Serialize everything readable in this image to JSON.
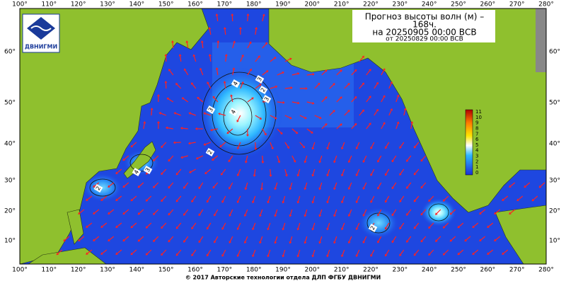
{
  "header": {
    "title": "Прогноз высоты волн (м) –",
    "lead": "168ч.",
    "valid": "на 20250905 00:00 ВСВ",
    "issued": "от 20250829 00:00 ВСВ"
  },
  "logo": {
    "label": "ДВНИГМИ"
  },
  "lon_labels": [
    "100°",
    "110°",
    "120°",
    "130°",
    "140°",
    "150°",
    "160°",
    "170°",
    "180°",
    "190°",
    "200°",
    "210°",
    "220°",
    "230°",
    "240°",
    "250°",
    "260°",
    "270°",
    "280°"
  ],
  "lat_labels": [
    "60°",
    "50°",
    "40°",
    "30°",
    "20°",
    "10°"
  ],
  "colorbar": {
    "labels": [
      "11",
      "10",
      "9",
      "8",
      "7",
      "6",
      "5",
      "4",
      "3",
      "2",
      "1",
      "0"
    ]
  },
  "contours": [
    {
      "label": "4"
    },
    {
      "label": "4"
    },
    {
      "label": "3"
    },
    {
      "label": "2"
    },
    {
      "label": "3"
    },
    {
      "label": "2"
    },
    {
      "label": "3"
    },
    {
      "label": "4"
    },
    {
      "label": "3"
    },
    {
      "label": "2"
    },
    {
      "label": "2"
    }
  ],
  "footer": {
    "copyright": "© 2017 Авторские технологии отдела ДЛП ФГБУ ДВНИГМИ"
  }
}
